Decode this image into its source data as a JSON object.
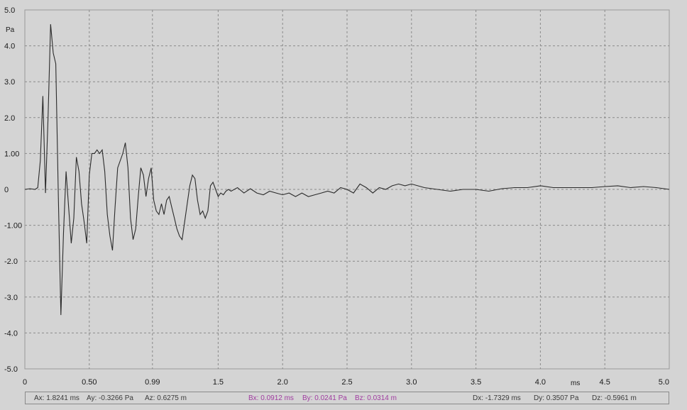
{
  "chart_data": {
    "type": "line",
    "title": "",
    "y_unit": "Pa",
    "x_unit": "ms",
    "xlim": [
      0,
      5.0
    ],
    "ylim": [
      -5.0,
      5.0
    ],
    "grid": true,
    "x_ticks": [
      "0",
      "0.50",
      "0.99",
      "1.5",
      "2.0",
      "2.5",
      "3.0",
      "3.5",
      "4.0",
      "4.5",
      "5.0"
    ],
    "x_tick_values": [
      0,
      0.5,
      0.99,
      1.5,
      2.0,
      2.5,
      3.0,
      3.5,
      4.0,
      4.5,
      5.0
    ],
    "y_ticks": [
      "5.0",
      "4.0",
      "3.0",
      "2.0",
      "1.00",
      "0",
      "-1.00",
      "-2.0",
      "-3.0",
      "-4.0",
      "-5.0"
    ],
    "y_tick_values": [
      5.0,
      4.0,
      3.0,
      2.0,
      1.0,
      0,
      -1.0,
      -2.0,
      -3.0,
      -4.0,
      -5.0
    ],
    "series": [
      {
        "color": "#2a2a2a",
        "x": [
          0,
          0.04,
          0.08,
          0.1,
          0.12,
          0.14,
          0.16,
          0.18,
          0.2,
          0.22,
          0.24,
          0.26,
          0.28,
          0.3,
          0.32,
          0.34,
          0.36,
          0.38,
          0.4,
          0.42,
          0.44,
          0.46,
          0.48,
          0.5,
          0.52,
          0.54,
          0.56,
          0.58,
          0.6,
          0.62,
          0.64,
          0.66,
          0.68,
          0.7,
          0.72,
          0.74,
          0.76,
          0.78,
          0.8,
          0.82,
          0.84,
          0.86,
          0.88,
          0.9,
          0.92,
          0.94,
          0.96,
          0.98,
          1.0,
          1.02,
          1.04,
          1.06,
          1.08,
          1.1,
          1.12,
          1.14,
          1.16,
          1.18,
          1.2,
          1.22,
          1.24,
          1.26,
          1.28,
          1.3,
          1.32,
          1.34,
          1.36,
          1.38,
          1.4,
          1.42,
          1.44,
          1.46,
          1.48,
          1.5,
          1.52,
          1.54,
          1.56,
          1.58,
          1.6,
          1.65,
          1.7,
          1.75,
          1.8,
          1.85,
          1.9,
          1.95,
          2.0,
          2.05,
          2.1,
          2.15,
          2.2,
          2.25,
          2.3,
          2.35,
          2.4,
          2.45,
          2.5,
          2.55,
          2.6,
          2.65,
          2.7,
          2.75,
          2.8,
          2.85,
          2.9,
          2.95,
          3.0,
          3.1,
          3.2,
          3.3,
          3.4,
          3.5,
          3.6,
          3.7,
          3.8,
          3.9,
          4.0,
          4.1,
          4.2,
          4.3,
          4.4,
          4.5,
          4.6,
          4.7,
          4.8,
          4.9,
          5.0
        ],
        "y": [
          0,
          0.02,
          0,
          0.05,
          0.8,
          2.6,
          -0.1,
          2.0,
          4.6,
          3.8,
          3.5,
          -0.2,
          -3.5,
          -1.2,
          0.5,
          -0.5,
          -1.5,
          -0.8,
          0.9,
          0.5,
          -0.4,
          -0.9,
          -1.5,
          0.4,
          1.0,
          1.0,
          1.1,
          1.0,
          1.1,
          0.5,
          -0.7,
          -1.3,
          -1.7,
          -0.5,
          0.6,
          0.8,
          1.0,
          1.3,
          0.6,
          -0.8,
          -1.4,
          -1.1,
          -0.2,
          0.6,
          0.4,
          -0.2,
          0.3,
          0.6,
          -0.3,
          -0.6,
          -0.7,
          -0.4,
          -0.7,
          -0.3,
          -0.2,
          -0.5,
          -0.8,
          -1.1,
          -1.3,
          -1.4,
          -0.9,
          -0.4,
          0.1,
          0.4,
          0.3,
          -0.3,
          -0.7,
          -0.6,
          -0.8,
          -0.6,
          0.1,
          0.2,
          0.0,
          -0.2,
          -0.1,
          -0.15,
          -0.05,
          0.0,
          -0.05,
          0.05,
          -0.1,
          0.02,
          -0.1,
          -0.15,
          -0.05,
          -0.1,
          -0.15,
          -0.1,
          -0.2,
          -0.1,
          -0.2,
          -0.15,
          -0.1,
          -0.05,
          -0.1,
          0.05,
          0.0,
          -0.1,
          0.15,
          0.05,
          -0.1,
          0.05,
          0.0,
          0.1,
          0.15,
          0.1,
          0.15,
          0.05,
          0.0,
          -0.05,
          0.0,
          0.0,
          -0.05,
          0.02,
          0.05,
          0.05,
          0.1,
          0.05,
          0.05,
          0.05,
          0.05,
          0.08,
          0.1,
          0.05,
          0.08,
          0.05,
          0.0
        ]
      }
    ]
  },
  "readout": {
    "a": {
      "x": "Ax: 1.8241 ms",
      "y": "Ay: -0.3266 Pa",
      "z": "Az: 0.6275 m"
    },
    "b": {
      "x": "Bx: 0.0912 ms",
      "y": "By: 0.0241 Pa",
      "z": "Bz: 0.0314 m"
    },
    "d": {
      "x": "Dx: -1.7329 ms",
      "y": "Dy: 0.3507 Pa",
      "z": "Dz: -0.5961 m"
    }
  }
}
